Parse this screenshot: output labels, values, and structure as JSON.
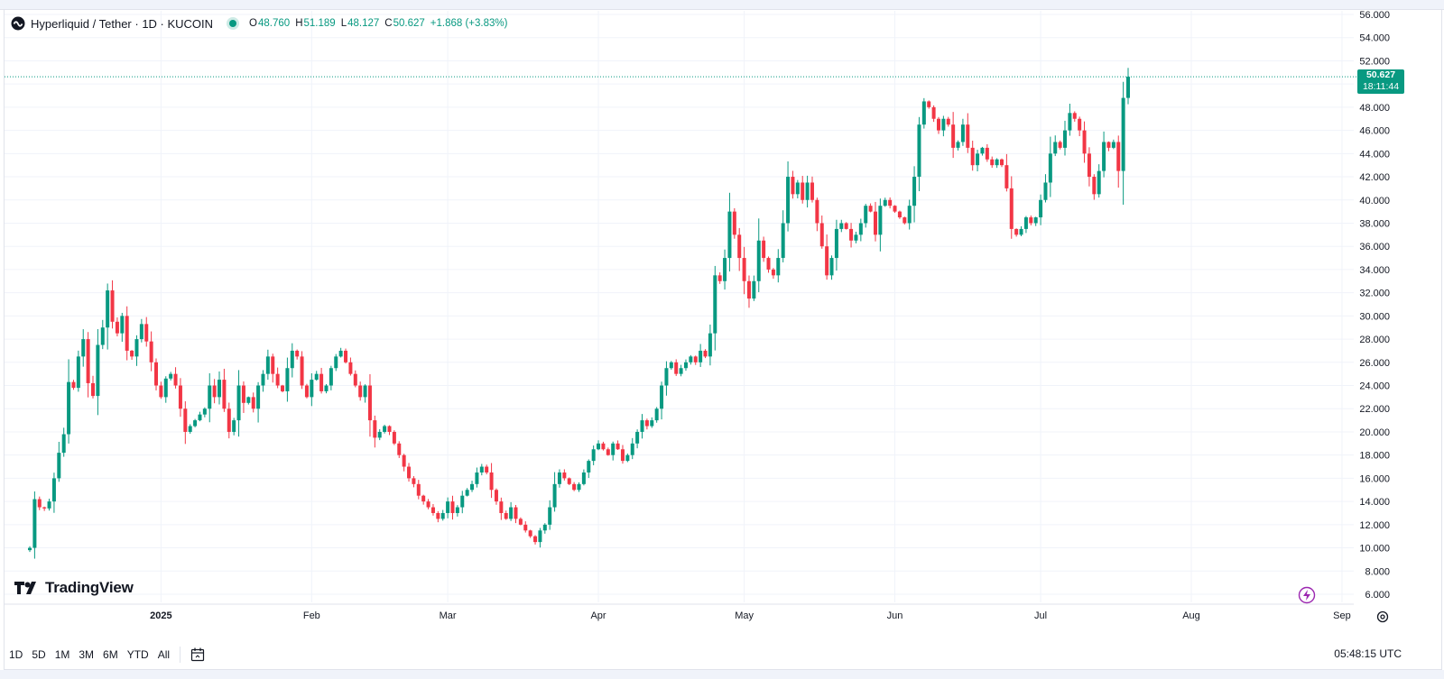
{
  "legend": {
    "title": "Hyperliquid / Tether · 1D · KUCOIN",
    "open_label": "O",
    "open": "48.760",
    "high_label": "H",
    "high": "51.189",
    "low_label": "L",
    "low": "48.127",
    "close_label": "C",
    "close": "50.627",
    "change": "+1.868 (+3.83%)"
  },
  "price_tag": {
    "price": "50.627",
    "countdown": "18:11:44"
  },
  "brand": "TradingView",
  "time_ranges": [
    "1D",
    "5D",
    "1M",
    "3M",
    "6M",
    "YTD",
    "All"
  ],
  "clock": "05:48:15 UTC",
  "colors": {
    "up": "#089981",
    "down": "#f23645",
    "grid": "#f0f3fa",
    "axis_text": "#131722"
  },
  "chart_data": {
    "type": "candlestick",
    "title": "Hyperliquid / Tether · 1D · KUCOIN",
    "xlabel": "",
    "ylabel": "",
    "ylim": [
      6,
      56
    ],
    "y_ticks": [
      "56.000",
      "54.000",
      "52.000",
      "50.000",
      "48.000",
      "46.000",
      "44.000",
      "42.000",
      "40.000",
      "38.000",
      "36.000",
      "34.000",
      "32.000",
      "30.000",
      "28.000",
      "26.000",
      "24.000",
      "22.000",
      "20.000",
      "18.000",
      "16.000",
      "14.000",
      "12.000",
      "10.000",
      "8.000",
      "6.000"
    ],
    "x_ticks": [
      {
        "label": "2025",
        "day": 27
      },
      {
        "label": "Feb",
        "day": 58
      },
      {
        "label": "Mar",
        "day": 86
      },
      {
        "label": "Apr",
        "day": 117
      },
      {
        "label": "May",
        "day": 147
      },
      {
        "label": "Jun",
        "day": 178
      },
      {
        "label": "Jul",
        "day": 208
      },
      {
        "label": "Aug",
        "day": 239
      },
      {
        "label": "Sep",
        "day": 270
      }
    ],
    "start_date": "2024-12-05",
    "last_price": 50.627,
    "closes": [
      10.0,
      14.2,
      13.5,
      13.4,
      14.0,
      16.0,
      18.2,
      19.8,
      24.3,
      23.8,
      26.5,
      28.0,
      24.2,
      23.1,
      27.5,
      29.0,
      32.2,
      29.5,
      28.5,
      30.0,
      27.0,
      26.5,
      28.0,
      29.3,
      27.8,
      26.0,
      24.0,
      23.0,
      24.6,
      25.0,
      24.0,
      22.0,
      20.0,
      20.5,
      21.0,
      21.5,
      22.0,
      24.0,
      23.0,
      24.5,
      22.0,
      20.0,
      21.0,
      24.0,
      22.5,
      23.0,
      22.0,
      24.0,
      25.0,
      26.5,
      25.0,
      24.0,
      23.5,
      25.5,
      27.0,
      26.5,
      24.0,
      23.0,
      24.5,
      25.0,
      23.5,
      24.0,
      25.5,
      26.5,
      27.0,
      26.0,
      25.0,
      24.0,
      23.0,
      24.0,
      21.0,
      19.5,
      20.0,
      20.5,
      20.0,
      19.0,
      18.0,
      17.0,
      16.0,
      15.5,
      14.5,
      14.0,
      13.5,
      13.0,
      12.5,
      13.0,
      14.0,
      13.0,
      13.5,
      14.5,
      15.0,
      15.5,
      16.5,
      17.0,
      16.5,
      15.0,
      14.0,
      13.0,
      12.5,
      13.5,
      12.5,
      12.0,
      11.5,
      11.0,
      10.5,
      11.5,
      12.0,
      13.5,
      15.5,
      16.5,
      16.0,
      15.5,
      15.0,
      15.5,
      16.5,
      17.5,
      18.5,
      19.0,
      18.5,
      18.0,
      19.0,
      18.5,
      17.5,
      18.0,
      19.0,
      20.0,
      21.0,
      20.5,
      21.0,
      22.0,
      24.0,
      25.5,
      26.0,
      25.0,
      25.5,
      26.0,
      26.5,
      26.0,
      27.0,
      26.5,
      28.5,
      33.5,
      33.0,
      35.0,
      39.0,
      37.0,
      35.0,
      33.0,
      31.5,
      33.0,
      36.5,
      35.0,
      34.0,
      33.5,
      35.0,
      38.0,
      42.0,
      40.5,
      41.5,
      40.0,
      41.5,
      40.0,
      38.0,
      36.0,
      33.5,
      35.0,
      37.5,
      38.0,
      37.5,
      36.5,
      37.0,
      38.0,
      39.5,
      39.0,
      37.0,
      39.5,
      40.0,
      39.5,
      39.0,
      38.5,
      38.0,
      39.5,
      42.0,
      46.5,
      48.5,
      48.0,
      47.0,
      46.0,
      47.0,
      46.5,
      44.5,
      45.0,
      46.5,
      44.5,
      43.0,
      44.0,
      44.5,
      43.5,
      43.0,
      43.5,
      43.0,
      41.0,
      37.5,
      37.0,
      37.5,
      38.5,
      38.0,
      38.5,
      40.0,
      41.5,
      44.0,
      45.0,
      44.5,
      46.0,
      47.5,
      47.0,
      46.0,
      44.0,
      42.0,
      40.5,
      42.5,
      45.0,
      44.5,
      45.0,
      42.5,
      48.8,
      50.627
    ]
  }
}
